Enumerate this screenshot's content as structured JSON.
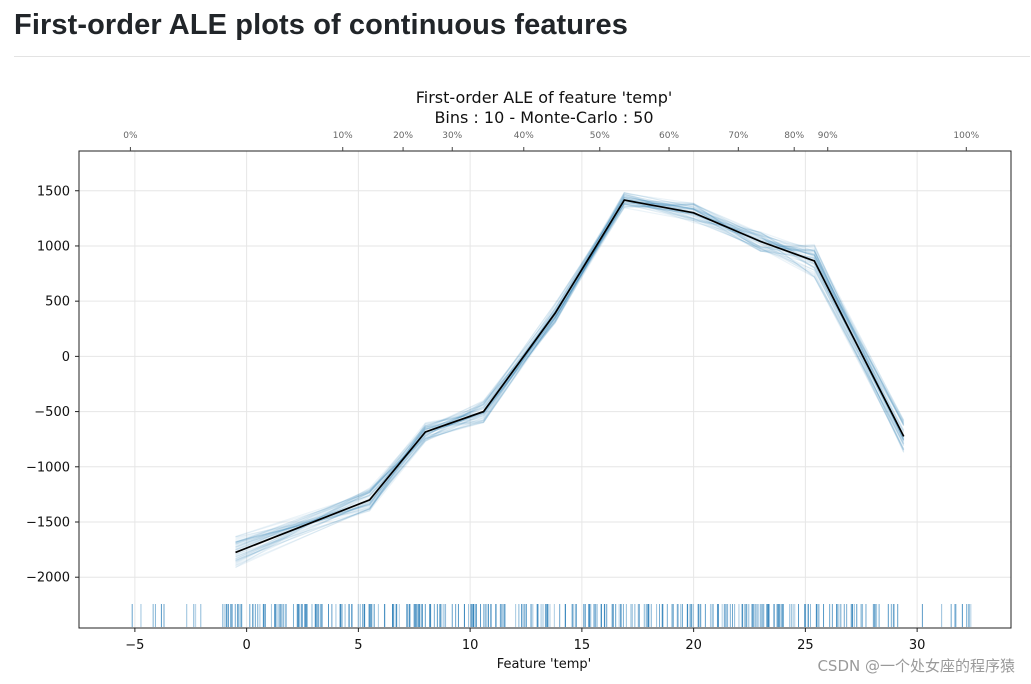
{
  "page": {
    "heading": "First-order ALE plots of continuous features",
    "watermark": "CSDN @一个处女座的程序猿"
  },
  "chart_data": {
    "type": "line",
    "title": "First-order ALE of feature 'temp'",
    "subtitle": "Bins : 10 - Monte-Carlo : 50",
    "xlabel": "Feature 'temp'",
    "ylabel": "",
    "xlim": [
      -7.5,
      34.2
    ],
    "ylim": [
      -2460,
      1860
    ],
    "xticks": [
      -5,
      0,
      5,
      10,
      15,
      20,
      25,
      30
    ],
    "xtick_labels": [
      "−5",
      "0",
      "5",
      "10",
      "15",
      "20",
      "25",
      "30"
    ],
    "yticks": [
      1500,
      1000,
      500,
      0,
      -500,
      -1000,
      -1500,
      -2000
    ],
    "ytick_labels": [
      "1500",
      "1000",
      "500",
      "0",
      "−500",
      "−1000",
      "−1500",
      "−2000"
    ],
    "grid": true,
    "quantile_axis": {
      "positions": [
        -5.2,
        4.3,
        7.0,
        9.2,
        12.4,
        15.8,
        18.9,
        22.0,
        24.5,
        26.0,
        32.2
      ],
      "labels": [
        "0%",
        "10%",
        "20%",
        "30%",
        "40%",
        "50%",
        "60%",
        "70%",
        "80%",
        "90%",
        "100%"
      ]
    },
    "series": [
      {
        "role": "mean",
        "color": "#000000",
        "x": [
          -0.5,
          5.5,
          8.0,
          10.6,
          13.8,
          16.9,
          20.0,
          23.0,
          25.4,
          29.4
        ],
        "y": [
          -1775,
          -1300,
          -685,
          -500,
          390,
          1415,
          1300,
          1040,
          865,
          -725
        ]
      }
    ],
    "monte_carlo": {
      "color": "#1f77b4",
      "runs": 50,
      "x": [
        -0.5,
        5.5,
        8.0,
        10.6,
        13.8,
        16.9,
        20.0,
        23.0,
        25.4,
        29.4
      ],
      "spread": [
        150,
        110,
        90,
        100,
        90,
        70,
        90,
        90,
        150,
        150
      ]
    },
    "rug": {
      "color": "#1f77b4",
      "x_min": -5.3,
      "x_max": 32.6
    }
  }
}
